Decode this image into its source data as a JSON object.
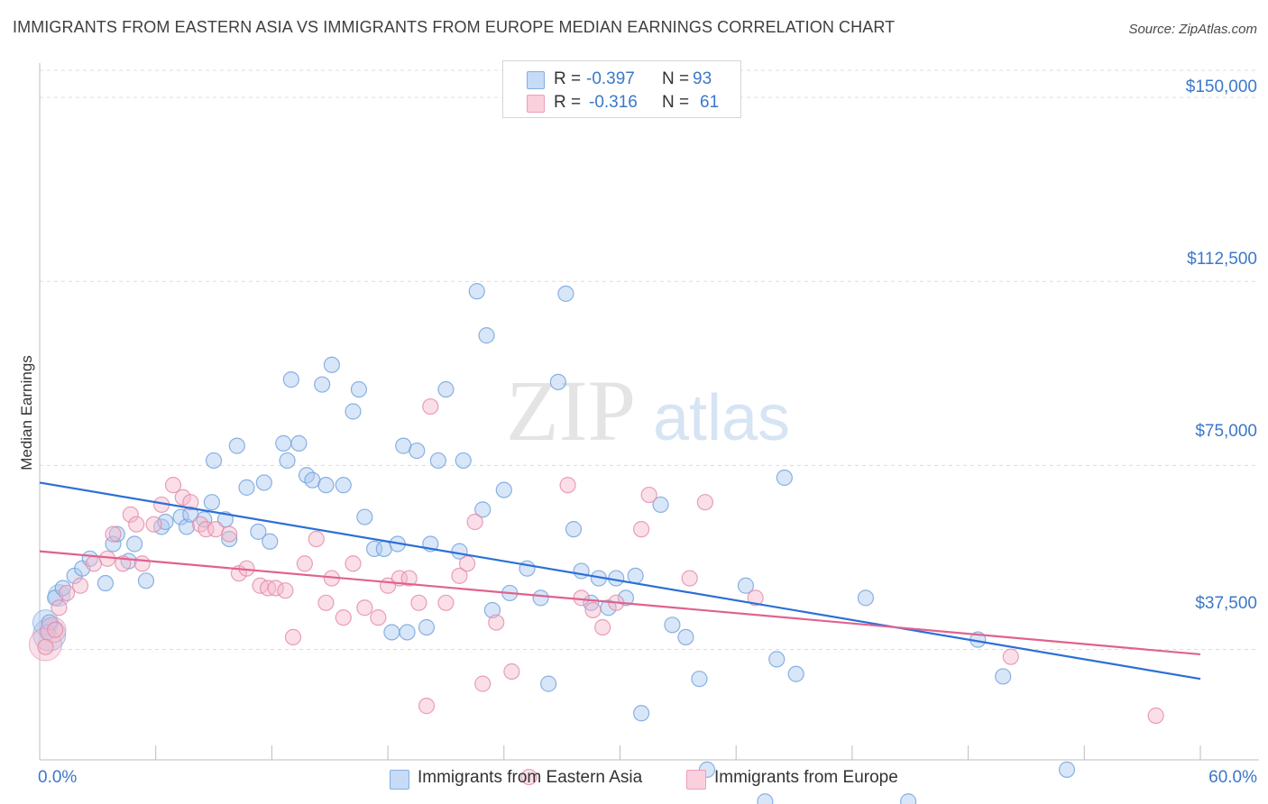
{
  "header": {
    "title": "IMMIGRANTS FROM EASTERN ASIA VS IMMIGRANTS FROM EUROPE MEDIAN EARNINGS CORRELATION CHART",
    "source": "Source: ZipAtlas.com"
  },
  "watermark": {
    "zip": "ZIP",
    "atlas": "atlas"
  },
  "legend": {
    "rows": [
      {
        "r_label": "R =",
        "r_value": "-0.397",
        "n_label": "N =",
        "n_value": "93",
        "color": "#a9c8f0"
      },
      {
        "r_label": "R =",
        "r_value": "-0.316",
        "n_label": "N =",
        "n_value": "61",
        "color": "#f5b7cb"
      }
    ]
  },
  "chart_data": {
    "type": "scatter",
    "title": "IMMIGRANTS FROM EASTERN ASIA VS IMMIGRANTS FROM EUROPE MEDIAN EARNINGS CORRELATION CHART",
    "xlabel": "",
    "ylabel": "Median Earnings",
    "xlim": [
      0,
      60
    ],
    "ylim": [
      15000,
      157000
    ],
    "x_tick_labels": [
      "0.0%",
      "60.0%"
    ],
    "y_ticks": [
      {
        "value": 150000,
        "label": "$150,000"
      },
      {
        "value": 112500,
        "label": "$112,500"
      },
      {
        "value": 75000,
        "label": "$75,000"
      },
      {
        "value": 37500,
        "label": "$37,500"
      }
    ],
    "grid": true,
    "legend_position": "bottom",
    "series": [
      {
        "name": "Immigrants from Eastern Asia",
        "color": "#a9c8f0",
        "stroke": "#6ea0dc",
        "trend_color": "#2b6fd6",
        "trend": {
          "x0": 0,
          "y0": 71500,
          "x1": 60,
          "y1": 31500
        },
        "points": [
          [
            0.4,
            41000
          ],
          [
            0.5,
            43000
          ],
          [
            0.8,
            48000
          ],
          [
            1.2,
            50000
          ],
          [
            1.8,
            52500
          ],
          [
            2.2,
            54000
          ],
          [
            2.6,
            56000
          ],
          [
            3.4,
            51000
          ],
          [
            3.8,
            59000
          ],
          [
            4.0,
            61000
          ],
          [
            4.6,
            55500
          ],
          [
            4.9,
            59000
          ],
          [
            5.5,
            51500
          ],
          [
            6.3,
            62500
          ],
          [
            6.5,
            63500
          ],
          [
            7.3,
            64500
          ],
          [
            7.6,
            62500
          ],
          [
            7.8,
            65000
          ],
          [
            8.5,
            64000
          ],
          [
            8.9,
            67500
          ],
          [
            9.0,
            76000
          ],
          [
            9.6,
            64000
          ],
          [
            9.8,
            60000
          ],
          [
            10.2,
            79000
          ],
          [
            10.7,
            70500
          ],
          [
            11.3,
            61500
          ],
          [
            11.6,
            71500
          ],
          [
            11.9,
            59500
          ],
          [
            12.6,
            79500
          ],
          [
            12.8,
            76000
          ],
          [
            13.0,
            92500
          ],
          [
            13.4,
            79500
          ],
          [
            13.8,
            73000
          ],
          [
            14.1,
            72000
          ],
          [
            14.6,
            91500
          ],
          [
            14.8,
            71000
          ],
          [
            15.1,
            95500
          ],
          [
            15.7,
            71000
          ],
          [
            16.2,
            86000
          ],
          [
            16.5,
            90500
          ],
          [
            16.8,
            64500
          ],
          [
            17.3,
            58000
          ],
          [
            17.8,
            58000
          ],
          [
            18.2,
            41000
          ],
          [
            18.5,
            59000
          ],
          [
            18.8,
            79000
          ],
          [
            19.0,
            41000
          ],
          [
            19.5,
            78000
          ],
          [
            20.0,
            42000
          ],
          [
            20.2,
            59000
          ],
          [
            20.6,
            76000
          ],
          [
            21.0,
            90500
          ],
          [
            21.7,
            57500
          ],
          [
            21.9,
            76000
          ],
          [
            22.6,
            110500
          ],
          [
            22.9,
            66000
          ],
          [
            23.1,
            101500
          ],
          [
            23.4,
            45500
          ],
          [
            24.0,
            70000
          ],
          [
            24.3,
            49000
          ],
          [
            25.2,
            54000
          ],
          [
            25.9,
            48000
          ],
          [
            26.3,
            30500
          ],
          [
            26.8,
            92000
          ],
          [
            27.2,
            110000
          ],
          [
            27.6,
            62000
          ],
          [
            28.0,
            53500
          ],
          [
            28.5,
            47000
          ],
          [
            28.9,
            52000
          ],
          [
            29.4,
            46000
          ],
          [
            29.8,
            52000
          ],
          [
            30.3,
            48000
          ],
          [
            30.8,
            52500
          ],
          [
            31.1,
            24500
          ],
          [
            32.1,
            67000
          ],
          [
            32.7,
            42500
          ],
          [
            33.4,
            40000
          ],
          [
            34.1,
            31500
          ],
          [
            34.5,
            13000
          ],
          [
            36.5,
            50500
          ],
          [
            37.5,
            6500
          ],
          [
            38.1,
            35500
          ],
          [
            38.5,
            72500
          ],
          [
            39.1,
            32500
          ],
          [
            42.7,
            48000
          ],
          [
            44.9,
            6500
          ],
          [
            48.5,
            39500
          ],
          [
            49.8,
            32000
          ],
          [
            53.1,
            13000
          ]
        ],
        "sizes_note": "larger bubbles near x=0",
        "big_points": [
          [
            0.5,
            40500,
            18
          ],
          [
            0.3,
            43000,
            14
          ],
          [
            1.0,
            48500,
            12
          ]
        ]
      },
      {
        "name": "Immigrants from Europe",
        "color": "#f5b7cb",
        "stroke": "#e588a6",
        "trend_color": "#e0628e",
        "trend": {
          "x0": 0,
          "y0": 57500,
          "x1": 60,
          "y1": 36500
        },
        "points": [
          [
            0.3,
            38000
          ],
          [
            0.8,
            41500
          ],
          [
            1.0,
            46000
          ],
          [
            1.4,
            49000
          ],
          [
            2.1,
            50500
          ],
          [
            2.8,
            55000
          ],
          [
            3.5,
            56000
          ],
          [
            3.8,
            61000
          ],
          [
            4.3,
            55000
          ],
          [
            4.7,
            65000
          ],
          [
            5.0,
            63000
          ],
          [
            5.3,
            55000
          ],
          [
            5.9,
            63000
          ],
          [
            6.3,
            67000
          ],
          [
            6.9,
            71000
          ],
          [
            7.4,
            68500
          ],
          [
            7.8,
            67500
          ],
          [
            8.3,
            63000
          ],
          [
            8.6,
            62000
          ],
          [
            9.1,
            62000
          ],
          [
            9.8,
            61000
          ],
          [
            10.3,
            53000
          ],
          [
            10.7,
            54000
          ],
          [
            11.4,
            50500
          ],
          [
            11.8,
            50000
          ],
          [
            12.2,
            50000
          ],
          [
            12.7,
            49500
          ],
          [
            13.1,
            40000
          ],
          [
            13.7,
            55000
          ],
          [
            14.3,
            60000
          ],
          [
            14.8,
            47000
          ],
          [
            15.1,
            52000
          ],
          [
            15.7,
            44000
          ],
          [
            16.2,
            55000
          ],
          [
            16.8,
            46000
          ],
          [
            17.5,
            44000
          ],
          [
            18.0,
            50500
          ],
          [
            18.6,
            52000
          ],
          [
            19.1,
            52000
          ],
          [
            19.6,
            47000
          ],
          [
            20.0,
            26000
          ],
          [
            20.2,
            87000
          ],
          [
            21.0,
            47000
          ],
          [
            21.7,
            52500
          ],
          [
            22.1,
            55000
          ],
          [
            22.5,
            63500
          ],
          [
            22.9,
            30500
          ],
          [
            23.6,
            43000
          ],
          [
            24.4,
            33000
          ],
          [
            25.3,
            11500
          ],
          [
            27.3,
            71000
          ],
          [
            28.0,
            48000
          ],
          [
            28.6,
            45500
          ],
          [
            29.1,
            42000
          ],
          [
            29.8,
            47000
          ],
          [
            31.1,
            62000
          ],
          [
            31.5,
            69000
          ],
          [
            33.6,
            52000
          ],
          [
            34.4,
            67500
          ],
          [
            37.0,
            48000
          ],
          [
            50.2,
            36000
          ],
          [
            57.7,
            24000
          ]
        ],
        "big_points": [
          [
            0.3,
            38500,
            18
          ],
          [
            0.7,
            41500,
            14
          ]
        ]
      }
    ]
  },
  "bottom_legend": {
    "items": [
      {
        "label": "Immigrants from Eastern Asia",
        "color": "#a9c8f0"
      },
      {
        "label": "Immigrants from Europe",
        "color": "#f5b7cb"
      }
    ]
  }
}
